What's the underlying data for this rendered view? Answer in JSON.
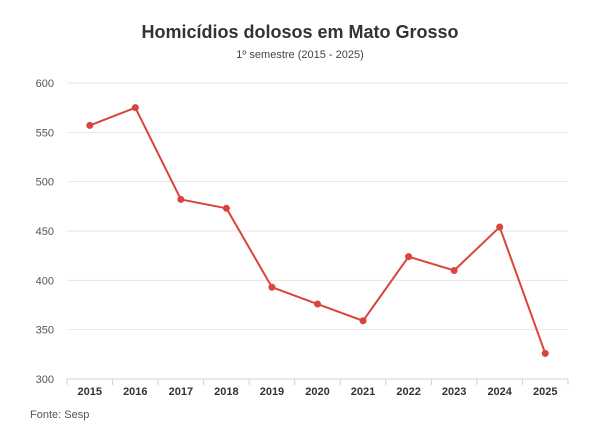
{
  "chart_data": {
    "type": "line",
    "title": "Homicídios dolosos em Mato Grosso",
    "subtitle": "1º semestre (2015 - 2025)",
    "x": [
      "2015",
      "2016",
      "2017",
      "2018",
      "2019",
      "2020",
      "2021",
      "2022",
      "2023",
      "2024",
      "2025"
    ],
    "series": [
      {
        "values": [
          557,
          575,
          482,
          473,
          393,
          376,
          359,
          424,
          410,
          454,
          326
        ]
      }
    ],
    "ylim": [
      300,
      600
    ],
    "yticks": [
      300,
      350,
      400,
      450,
      500,
      550,
      600
    ],
    "grid": true,
    "color": "#d9443b"
  },
  "source": "Fonte: Sesp"
}
